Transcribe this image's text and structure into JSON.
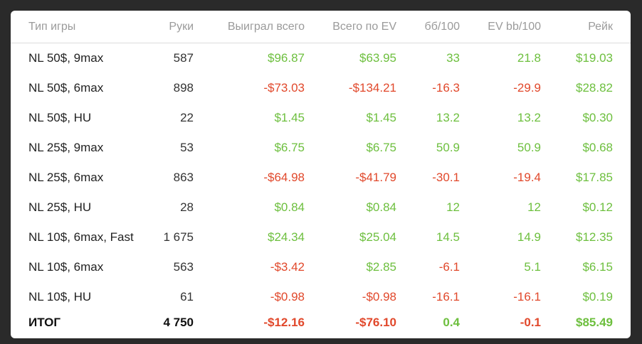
{
  "table": {
    "headers": [
      "Тип игры",
      "Руки",
      "Выиграл всего",
      "Всего по EV",
      "бб/100",
      "EV bb/100",
      "Рейк"
    ],
    "rows": [
      {
        "game": "NL 50$, 9max",
        "hands": "587",
        "won": "$96.87",
        "ev": "$63.95",
        "bb100": "33",
        "evbb100": "21.8",
        "rake": "$19.03"
      },
      {
        "game": "NL 50$, 6max",
        "hands": "898",
        "won": "-$73.03",
        "ev": "-$134.21",
        "bb100": "-16.3",
        "evbb100": "-29.9",
        "rake": "$28.82"
      },
      {
        "game": "NL 50$, HU",
        "hands": "22",
        "won": "$1.45",
        "ev": "$1.45",
        "bb100": "13.2",
        "evbb100": "13.2",
        "rake": "$0.30"
      },
      {
        "game": "NL 25$, 9max",
        "hands": "53",
        "won": "$6.75",
        "ev": "$6.75",
        "bb100": "50.9",
        "evbb100": "50.9",
        "rake": "$0.68"
      },
      {
        "game": "NL 25$, 6max",
        "hands": "863",
        "won": "-$64.98",
        "ev": "-$41.79",
        "bb100": "-30.1",
        "evbb100": "-19.4",
        "rake": "$17.85"
      },
      {
        "game": "NL 25$, HU",
        "hands": "28",
        "won": "$0.84",
        "ev": "$0.84",
        "bb100": "12",
        "evbb100": "12",
        "rake": "$0.12"
      },
      {
        "game": "NL 10$, 6max, Fast",
        "hands": "1 675",
        "won": "$24.34",
        "ev": "$25.04",
        "bb100": "14.5",
        "evbb100": "14.9",
        "rake": "$12.35"
      },
      {
        "game": "NL 10$, 6max",
        "hands": "563",
        "won": "-$3.42",
        "ev": "$2.85",
        "bb100": "-6.1",
        "evbb100": "5.1",
        "rake": "$6.15"
      },
      {
        "game": "NL 10$, HU",
        "hands": "61",
        "won": "-$0.98",
        "ev": "-$0.98",
        "bb100": "-16.1",
        "evbb100": "-16.1",
        "rake": "$0.19"
      }
    ],
    "total": {
      "game": "ИТОГ",
      "hands": "4 750",
      "won": "-$12.16",
      "ev": "-$76.10",
      "bb100": "0.4",
      "evbb100": "-0.1",
      "rake": "$85.49"
    }
  },
  "colors": {
    "positive": "#6dbf3e",
    "negative": "#e1482b",
    "background": "#2a2a2a",
    "card": "#ffffff"
  }
}
